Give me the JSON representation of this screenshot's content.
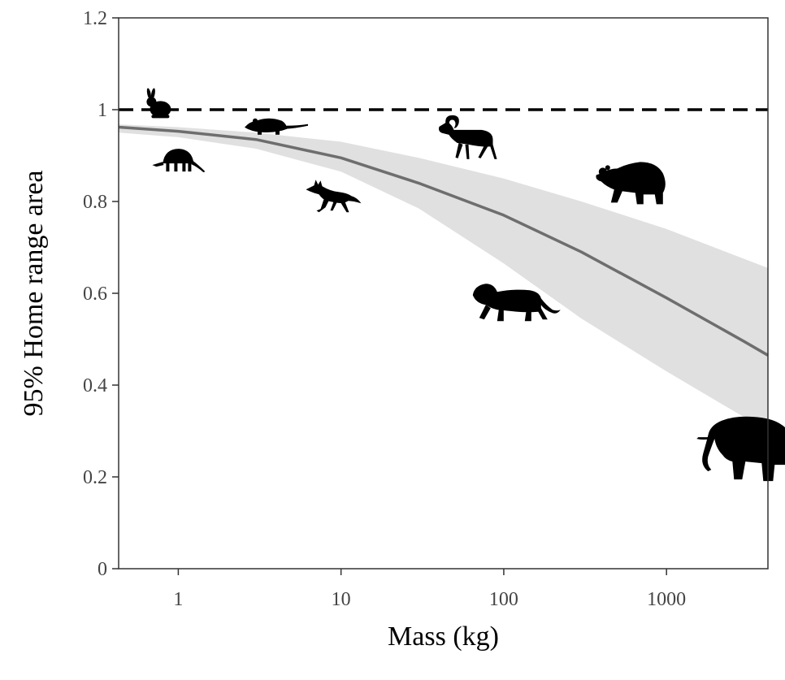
{
  "chart_data": {
    "type": "line",
    "title": "",
    "xlabel": "Mass (kg)",
    "ylabel": "95% Home range area",
    "x_scale": "log10",
    "xlim": [
      0.43,
      4200
    ],
    "ylim": [
      0,
      1.2
    ],
    "x_ticks": [
      {
        "value": 1,
        "label": "1"
      },
      {
        "value": 10,
        "label": "10"
      },
      {
        "value": 100,
        "label": "100"
      },
      {
        "value": 1000,
        "label": "1000"
      }
    ],
    "y_ticks": [
      {
        "value": 0,
        "label": "0"
      },
      {
        "value": 0.2,
        "label": "0.2"
      },
      {
        "value": 0.4,
        "label": "0.4"
      },
      {
        "value": 0.6,
        "label": "0.6"
      },
      {
        "value": 0.8,
        "label": "0.8"
      },
      {
        "value": 1,
        "label": "1"
      },
      {
        "value": 1.2,
        "label": "1.2"
      }
    ],
    "grid": false,
    "reference_line": {
      "y": 1,
      "style": "dashed",
      "color": "#000000"
    },
    "fit_line": {
      "color": "#6e6e6e",
      "x": [
        0.43,
        1,
        3,
        10,
        30,
        100,
        300,
        1000,
        3000,
        4200
      ],
      "y": [
        0.962,
        0.953,
        0.935,
        0.895,
        0.84,
        0.77,
        0.69,
        0.59,
        0.495,
        0.465
      ]
    },
    "ci_band": {
      "color": "#e0e0e0",
      "x": [
        0.43,
        1,
        3,
        10,
        30,
        100,
        300,
        1000,
        3000,
        4200
      ],
      "lower": [
        0.95,
        0.94,
        0.915,
        0.865,
        0.785,
        0.665,
        0.545,
        0.43,
        0.33,
        0.295
      ],
      "upper": [
        0.968,
        0.962,
        0.95,
        0.93,
        0.895,
        0.85,
        0.8,
        0.74,
        0.675,
        0.655
      ]
    },
    "points": [
      {
        "animal": "rabbit",
        "x": 0.75,
        "y": 1.01
      },
      {
        "animal": "armadillo",
        "x": 1.0,
        "y": 0.89
      },
      {
        "animal": "opossum",
        "x": 4.0,
        "y": 0.965
      },
      {
        "animal": "fox",
        "x": 9.0,
        "y": 0.81
      },
      {
        "animal": "bighorn-sheep",
        "x": 60,
        "y": 0.94
      },
      {
        "animal": "lion",
        "x": 120,
        "y": 0.58
      },
      {
        "animal": "bear",
        "x": 600,
        "y": 0.84
      },
      {
        "animal": "elephant",
        "x": 3200,
        "y": 0.26
      }
    ]
  }
}
